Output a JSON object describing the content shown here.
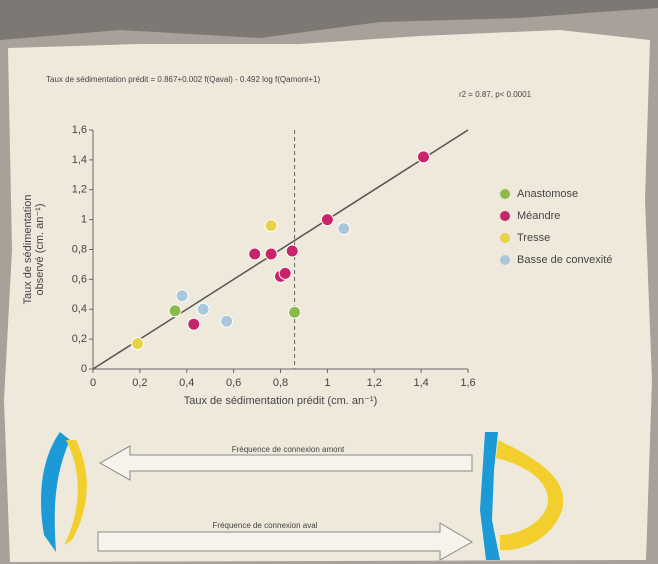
{
  "chart_data": {
    "type": "scatter",
    "title": "Taux de sédimentation prédit  = 0.867+0.002 f(Qaval) - 0.492 log f(Qamont+1)",
    "subtitle": "r2 = 0.87, p< 0.0001",
    "xlabel": "Taux de sédimentation prédit (cm. an⁻¹)",
    "ylabel": [
      "Taux de sédimentation",
      "observé (cm. an⁻¹)"
    ],
    "xlim": [
      0,
      1.6
    ],
    "ylim": [
      0,
      1.6
    ],
    "xticks": [
      0,
      {
        "value": 0.2,
        "label": "0,2"
      },
      {
        "value": 0.4,
        "label": "0,4"
      },
      {
        "value": 0.6,
        "label": "0,6"
      },
      {
        "value": 0.8,
        "label": "0,8"
      },
      1,
      {
        "value": 1.2,
        "label": "1,2"
      },
      {
        "value": 1.4,
        "label": "1,4"
      },
      {
        "value": 1.6,
        "label": "1,6"
      }
    ],
    "yticks": [
      0,
      {
        "value": 0.2,
        "label": "0,2"
      },
      {
        "value": 0.4,
        "label": "0,4"
      },
      {
        "value": 0.6,
        "label": "0,6"
      },
      {
        "value": 0.8,
        "label": "0,8"
      },
      1,
      {
        "value": 1.2,
        "label": "1,2"
      },
      {
        "value": 1.4,
        "label": "1,4"
      },
      {
        "value": 1.6,
        "label": "1,6"
      }
    ],
    "diagonal": true,
    "threshold_x": 0.86,
    "series": [
      {
        "name": "Anastomose",
        "color": "#8dbb4a",
        "x": [
          0.35,
          0.86
        ],
        "values": [
          0.39,
          0.38
        ]
      },
      {
        "name": "Méandre",
        "color": "#c8246a",
        "x": [
          0.69,
          0.76,
          0.8,
          0.82,
          0.85,
          1.0,
          1.41,
          0.43
        ],
        "values": [
          0.77,
          0.77,
          0.62,
          0.64,
          0.79,
          1.0,
          1.42,
          0.3
        ]
      },
      {
        "name": "Tresse",
        "color": "#e8d24a",
        "x": [
          0.76,
          0.19
        ],
        "values": [
          0.96,
          0.17
        ]
      },
      {
        "name": "Basse de convexité",
        "color": "#a9c8dc",
        "x": [
          0.38,
          0.47,
          0.57,
          1.07
        ],
        "values": [
          0.49,
          0.4,
          0.32,
          0.94
        ]
      }
    ],
    "legend": "right"
  },
  "diagram": {
    "arrow_top": "Fréquence de connexion amont",
    "arrow_bottom": "Fréquence de connexion aval"
  }
}
